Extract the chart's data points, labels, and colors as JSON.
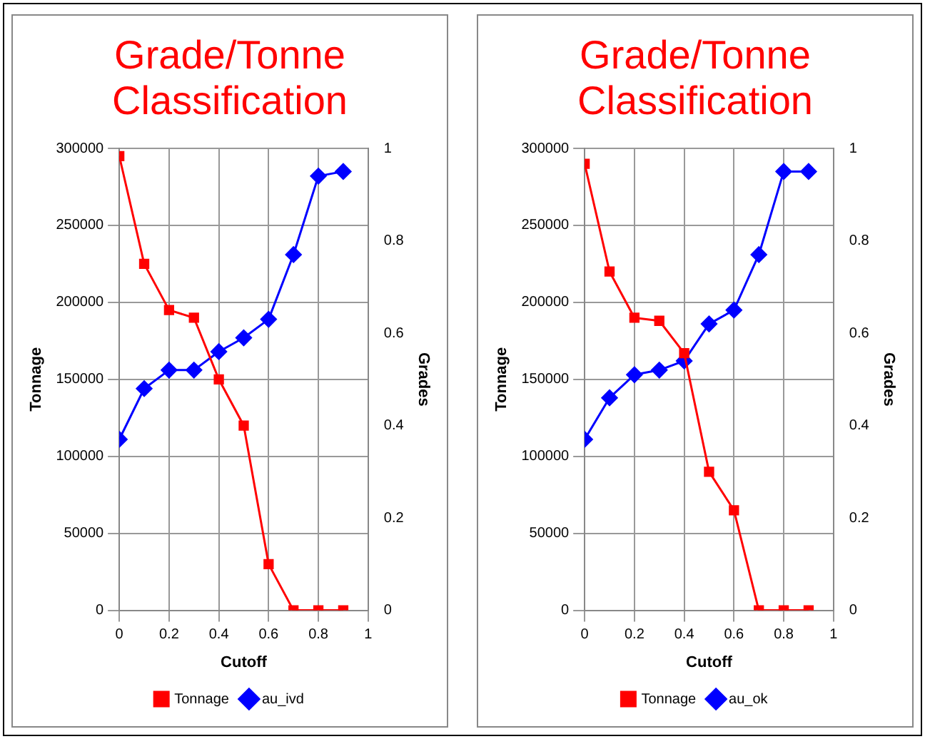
{
  "chart_data": [
    {
      "type": "line",
      "title": "Grade/Tonne Classification",
      "xlabel": "Cutoff",
      "ylabel": "Tonnage",
      "y2label": "Grades",
      "x": [
        0,
        0.1,
        0.2,
        0.3,
        0.4,
        0.5,
        0.6,
        0.7,
        0.8,
        0.9
      ],
      "xlim": [
        0,
        1
      ],
      "xticks": [
        0,
        0.2,
        0.4,
        0.6,
        0.8,
        1
      ],
      "ylim": [
        0,
        300000
      ],
      "yticks": [
        0,
        50000,
        100000,
        150000,
        200000,
        250000,
        300000
      ],
      "y2lim": [
        0,
        1
      ],
      "y2ticks": [
        0,
        0.2,
        0.4,
        0.6,
        0.8,
        1
      ],
      "grid": true,
      "legend": "bottom",
      "series": [
        {
          "name": "Tonnage",
          "color": "#ff0000",
          "marker": "square",
          "values": [
            295000,
            225000,
            195000,
            190000,
            150000,
            120000,
            30000,
            0,
            0,
            0
          ]
        },
        {
          "name": "au_ivd",
          "color": "#0000ff",
          "marker": "diamond",
          "axis": "y2",
          "values": [
            0.37,
            0.48,
            0.52,
            0.52,
            0.56,
            0.59,
            0.63,
            0.77,
            0.94,
            0.95
          ]
        }
      ]
    },
    {
      "type": "line",
      "title": "Grade/Tonne Classification",
      "xlabel": "Cutoff",
      "ylabel": "Tonnage",
      "y2label": "Grades",
      "x": [
        0,
        0.1,
        0.2,
        0.3,
        0.4,
        0.5,
        0.6,
        0.7,
        0.8,
        0.9
      ],
      "xlim": [
        0,
        1
      ],
      "xticks": [
        0,
        0.2,
        0.4,
        0.6,
        0.8,
        1
      ],
      "ylim": [
        0,
        300000
      ],
      "yticks": [
        0,
        50000,
        100000,
        150000,
        200000,
        250000,
        300000
      ],
      "y2lim": [
        0,
        1
      ],
      "y2ticks": [
        0,
        0.2,
        0.4,
        0.6,
        0.8,
        1
      ],
      "grid": true,
      "legend": "bottom",
      "series": [
        {
          "name": "Tonnage",
          "color": "#ff0000",
          "marker": "square",
          "values": [
            290000,
            220000,
            190000,
            188000,
            167000,
            90000,
            65000,
            0,
            0,
            0
          ]
        },
        {
          "name": "au_ok",
          "color": "#0000ff",
          "marker": "diamond",
          "axis": "y2",
          "values": [
            0.37,
            0.46,
            0.51,
            0.52,
            0.54,
            0.62,
            0.65,
            0.77,
            0.95,
            0.95
          ]
        }
      ]
    }
  ]
}
